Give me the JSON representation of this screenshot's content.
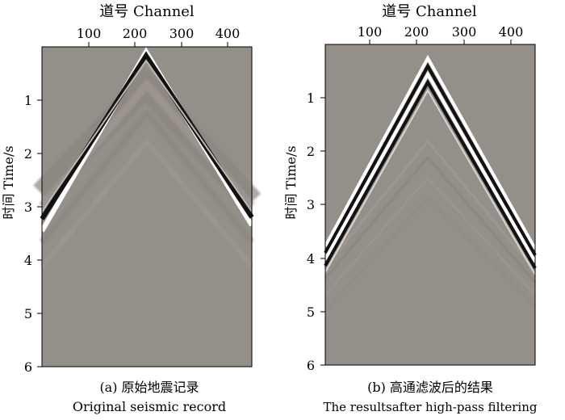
{
  "panels": [
    {
      "id": "a",
      "x_axis_title": "道号 Channel",
      "y_axis_title": "时间 Time/s",
      "x_ticks": [
        100,
        200,
        300,
        400
      ],
      "y_ticks": [
        1,
        2,
        3,
        4,
        5,
        6
      ],
      "caption_cn": "(a) 原始地震记录",
      "caption_en": "Original seismic record"
    },
    {
      "id": "b",
      "x_axis_title": "道号 Channel",
      "y_axis_title": "时间 Time/s",
      "x_ticks": [
        100,
        200,
        300,
        400
      ],
      "y_ticks": [
        1,
        2,
        3,
        4,
        5,
        6
      ],
      "caption_cn": "(b) 高通滤波后的结果",
      "caption_en": "The resultsafter high-pass filtering"
    }
  ],
  "colors": {
    "background_gray": "#958f8a",
    "event_dark": "#111111",
    "event_light": "#ffffff"
  }
}
